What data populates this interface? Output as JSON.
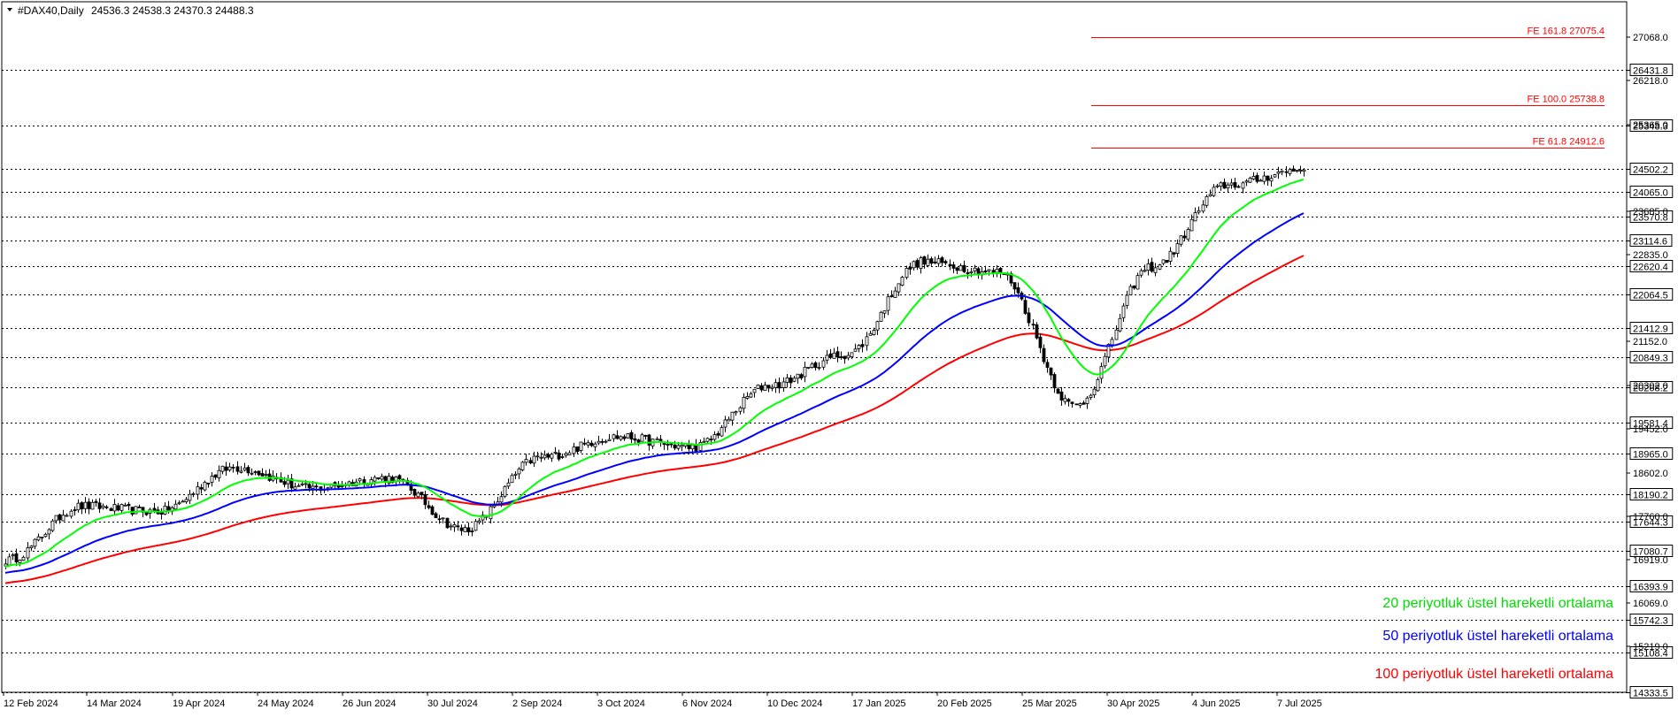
{
  "header": {
    "symbol": "#DAX40,Daily",
    "ohlc": "24536.3 24538.3 24370.3 24488.3"
  },
  "colors": {
    "ema20": "#00ff00",
    "ema50": "#0000ff",
    "ema100": "#ff0000",
    "fe": "#ff0000",
    "candle": "#000000",
    "grid": "#000000"
  },
  "legend": {
    "ema20": "20 periyotluk üstel hareketli ortalama",
    "ema50": "50 periyotluk üstel hareketli ortalama",
    "ema100": "100 periyotluk üstel hareketli ortalama"
  },
  "chart_data": {
    "type": "candlestick",
    "title": "#DAX40,Daily",
    "ylim": [
      14333.5,
      27500
    ],
    "grid": true,
    "x_labels": [
      "12 Feb 2024",
      "14 Mar 2024",
      "19 Apr 2024",
      "24 May 2024",
      "26 Jun 2024",
      "30 Jul 2024",
      "2 Sep 2024",
      "3 Oct 2024",
      "6 Nov 2024",
      "10 Dec 2024",
      "17 Jan 2025",
      "20 Feb 2025",
      "25 Mar 2025",
      "30 Apr 2025",
      "4 Jun 2025",
      "7 Jul 2025"
    ],
    "level_labels": [
      "26431.8",
      "25348.3",
      "24502.2",
      "24065.0",
      "23570.8",
      "23114.6",
      "22620.4",
      "22064.5",
      "21412.9",
      "20849.3",
      "20268.2",
      "19581.4",
      "18965.0",
      "18190.2",
      "17644.3",
      "17080.7",
      "16393.9",
      "15742.3",
      "15108.4",
      "14333.5"
    ],
    "scale_labels": [
      "27068.0",
      "26218.0",
      "25365.0",
      "23685.0",
      "22835.0",
      "21152.0",
      "20302.0",
      "19452.0",
      "18602.0",
      "17760.0",
      "16919.0",
      "16069.0",
      "15219.0"
    ],
    "fib_extensions": [
      {
        "label": "FE 161.8 27075.4",
        "value": 27075.4
      },
      {
        "label": "FE 100.0 25738.8",
        "value": 25738.8
      },
      {
        "label": "FE 61.8 24912.6",
        "value": 24912.6
      }
    ],
    "price_anchors": [
      {
        "x": "12 Feb 2024",
        "close": 16900
      },
      {
        "x": "14 Mar 2024",
        "close": 17950
      },
      {
        "x": "19 Apr 2024",
        "close": 17850
      },
      {
        "x": "24 May 2024",
        "close": 18700
      },
      {
        "x": "26 Jun 2024",
        "close": 18300
      },
      {
        "x": "30 Jul 2024",
        "close": 18500
      },
      {
        "x": "5 Aug 2024",
        "close": 17500
      },
      {
        "x": "2 Sep 2024",
        "close": 18900
      },
      {
        "x": "3 Oct 2024",
        "close": 19300
      },
      {
        "x": "6 Nov 2024",
        "close": 19100
      },
      {
        "x": "10 Dec 2024",
        "close": 20300
      },
      {
        "x": "17 Jan 2025",
        "close": 20900
      },
      {
        "x": "20 Feb 2025",
        "close": 22700
      },
      {
        "x": "25 Mar 2025",
        "close": 22500
      },
      {
        "x": "7 Apr 2025",
        "close": 19900
      },
      {
        "x": "30 Apr 2025",
        "close": 22600
      },
      {
        "x": "4 Jun 2025",
        "close": 24200
      },
      {
        "x": "7 Jul 2025",
        "close": 24500
      }
    ]
  }
}
